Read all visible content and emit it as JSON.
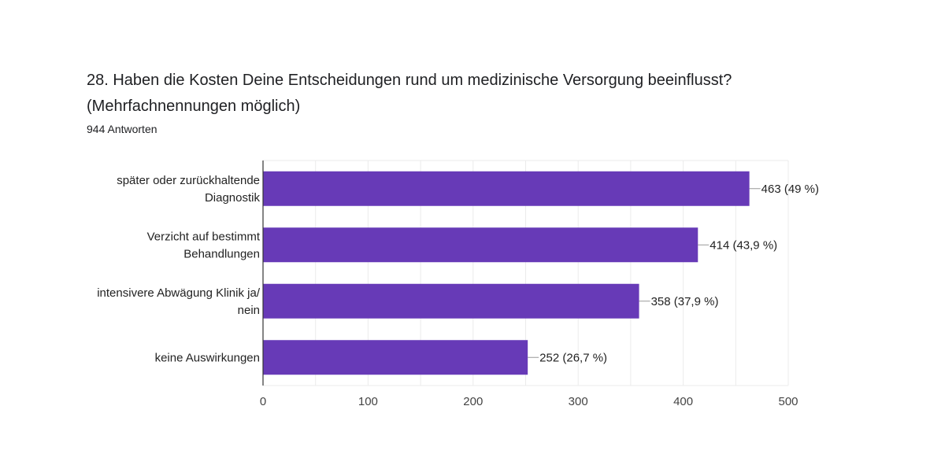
{
  "question": "28. Haben die Kosten Deine Entscheidungen rund um medizinische Versorgung beeinflusst? (Mehrfachnennungen möglich)",
  "responses": "944 Antworten",
  "colors": {
    "bar": "#673ab7",
    "grid": "#ebebeb",
    "axis": "#333333",
    "text": "#222222"
  },
  "chart_data": {
    "type": "bar",
    "orientation": "horizontal",
    "categories": [
      [
        "später oder zurückhaltende",
        "Diagnostik"
      ],
      [
        "Verzicht auf bestimmt",
        "Behandlungen"
      ],
      [
        "intensivere Abwägung Klinik ja/",
        "nein"
      ],
      [
        "keine Auswirkungen"
      ]
    ],
    "values": [
      463,
      414,
      358,
      252
    ],
    "labels": [
      "463 (49 %)",
      "414 (43,9 %)",
      "358 (37,9 %)",
      "252 (26,7 %)"
    ],
    "xlim": [
      0,
      500
    ],
    "xticks": [
      0,
      100,
      200,
      300,
      400,
      500
    ],
    "minor_grid_step": 50,
    "grid": true
  }
}
